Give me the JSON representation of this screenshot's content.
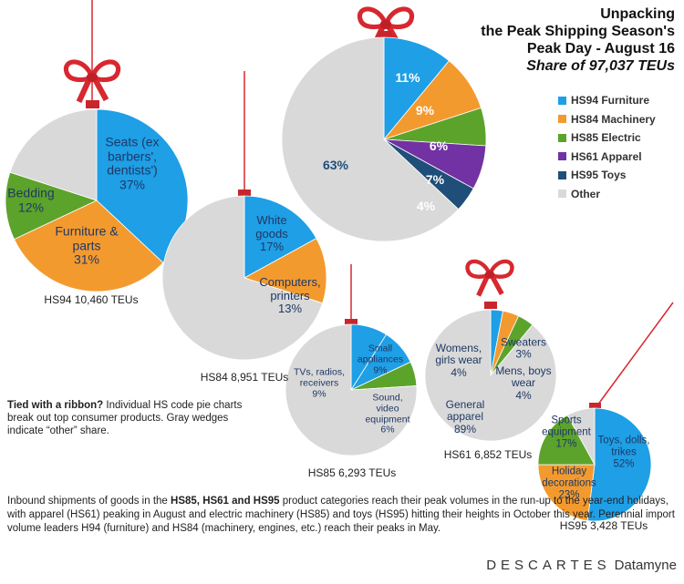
{
  "chart_data": [
    {
      "type": "pie",
      "title": [
        "Unpacking",
        "the Peak Shipping Season's",
        "Peak Day - August 16"
      ],
      "subtitle": "Share of 97,037 TEUs",
      "categories": [
        "HS94 Furniture",
        "HS84 Machinery",
        "HS85 Electric",
        "HS61 Apparel",
        "HS95 Toys",
        "Other"
      ],
      "values": [
        11,
        9,
        6,
        7,
        4,
        63
      ],
      "value_labels": [
        "11%",
        "9%",
        "6%",
        "7%",
        "4%",
        "63%"
      ],
      "colors": [
        "#1e9fe6",
        "#f39a2f",
        "#5ca32b",
        "#7232a3",
        "#1f4e79",
        "#d9d9d9"
      ],
      "legend": "right"
    },
    {
      "type": "pie",
      "caption": "HS94 10,460 TEUs",
      "categories": [
        "Seats (ex barbers', dentists')",
        "Furniture & parts",
        "Bedding",
        null
      ],
      "values": [
        37,
        31,
        12,
        20
      ],
      "value_labels": [
        "37%",
        "31%",
        "12%",
        null
      ],
      "colors": [
        "#1e9fe6",
        "#f39a2f",
        "#5ca32b",
        "#d9d9d9"
      ]
    },
    {
      "type": "pie",
      "caption": "HS84 8,951 TEUs",
      "categories": [
        "White goods",
        "Computers, printers",
        null
      ],
      "values": [
        17,
        13,
        70
      ],
      "value_labels": [
        "17%",
        "13%",
        null
      ],
      "colors": [
        "#1e9fe6",
        "#f39a2f",
        "#d9d9d9"
      ]
    },
    {
      "type": "pie",
      "caption": "HS85 6,293 TEUs",
      "categories": [
        "TVs, radios, receivers",
        "Small appliances",
        "Sound, video equipment",
        null
      ],
      "values": [
        9,
        9,
        6,
        76
      ],
      "value_labels": [
        "9%",
        "9%",
        "6%",
        null
      ],
      "colors": [
        "#1e9fe6",
        "#1e9fe6",
        "#5ca32b",
        "#d9d9d9"
      ]
    },
    {
      "type": "pie",
      "caption": "HS61 6,852 TEUs",
      "categories": [
        "Sweaters",
        "Womens, girls wear",
        "Mens, boys wear",
        "General apparel"
      ],
      "values": [
        3,
        4,
        4,
        89
      ],
      "value_labels": [
        "3%",
        "4%",
        "4%",
        "89%"
      ],
      "colors": [
        "#1e9fe6",
        "#f39a2f",
        "#5ca32b",
        "#d9d9d9"
      ]
    },
    {
      "type": "pie",
      "caption": "HS95 3,428 TEUs",
      "categories": [
        "Toys, dolls, trikes",
        "Holiday decorations",
        "Sports equipment",
        null
      ],
      "values": [
        52,
        23,
        17,
        8
      ],
      "value_labels": [
        "52%",
        "23%",
        "17%",
        null
      ],
      "colors": [
        "#1e9fe6",
        "#f39a2f",
        "#5ca32b",
        "#d9d9d9"
      ]
    }
  ],
  "note": {
    "lead": "Tied with a ribbon?",
    "text": "Individual HS code pie charts break out top consumer products. Gray wedges indicate “other” share."
  },
  "paragraph": [
    "Inbound shipments of goods in the",
    "HS85, HS61 and HS95",
    "product categories reach their peak volumes in the run-up to the year-end holidays, with apparel (HS61) peaking in August and electric machinery (HS85) and toys (HS95) hitting their heights in October this year. Perennial import volume leaders H94 (furniture) and HS84 (machinery, engines, etc.) reach their peaks in May."
  ],
  "logo": [
    "DESCARTES",
    "Datamyne"
  ]
}
